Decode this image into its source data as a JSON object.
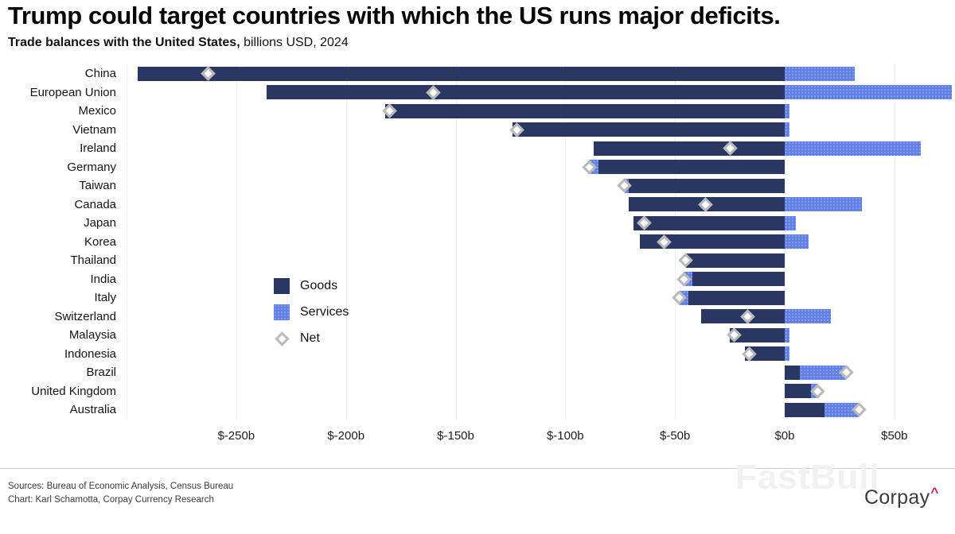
{
  "header": {
    "title": "Trump could target countries with which the US runs major deficits.",
    "subtitle_bold": "Trade balances with the United States,",
    "subtitle_rest": " billions USD, 2024"
  },
  "chart_data": {
    "type": "bar",
    "orientation": "horizontal-diverging-stacked",
    "title": "Trump could target countries with which the US runs major deficits.",
    "subtitle": "Trade balances with the United States, billions USD, 2024",
    "unit": "billions USD",
    "categories": [
      "China",
      "European Union",
      "Mexico",
      "Vietnam",
      "Ireland",
      "Germany",
      "Taiwan",
      "Canada",
      "Japan",
      "Korea",
      "Thailand",
      "India",
      "Italy",
      "Switzerland",
      "Malaysia",
      "Indonesia",
      "Brazil",
      "United Kingdom",
      "Australia"
    ],
    "series": [
      {
        "name": "Goods",
        "values": [
          -295,
          -236,
          -182,
          -124,
          -87,
          -85,
          -71,
          -71,
          -69,
          -66,
          -45,
          -42,
          -44,
          -38,
          -25,
          -18,
          7,
          12,
          18
        ]
      },
      {
        "name": "Services",
        "values": [
          32,
          76,
          2,
          2,
          62,
          -4,
          -2,
          35,
          5,
          11,
          0,
          -4,
          -4,
          21,
          2,
          2,
          21,
          3,
          16
        ]
      },
      {
        "name": "Net",
        "marker": "diamond",
        "values": [
          -263,
          -160,
          -180,
          -122,
          -25,
          -89,
          -73,
          -36,
          -64,
          -55,
          -45,
          -46,
          -48,
          -17,
          -23,
          -16,
          28,
          15,
          34
        ]
      }
    ],
    "xlim": [
      -300,
      77
    ],
    "grid_values": [
      -300,
      -250,
      -200,
      -150,
      -100,
      -50,
      0,
      50
    ],
    "xticks": [
      {
        "v": -250,
        "label": "$-250b"
      },
      {
        "v": -200,
        "label": "$-200b"
      },
      {
        "v": -150,
        "label": "$-150b"
      },
      {
        "v": -100,
        "label": "$-100b"
      },
      {
        "v": -50,
        "label": "$-50b"
      },
      {
        "v": 0,
        "label": "$0b"
      },
      {
        "v": 50,
        "label": "$50b"
      }
    ],
    "legend": [
      {
        "label": "Goods",
        "swatch": "square",
        "color": "#2b3763"
      },
      {
        "label": "Services",
        "swatch": "square-dotted",
        "color": "#6180e6"
      },
      {
        "label": "Net",
        "swatch": "diamond",
        "color": "#ffffff"
      }
    ],
    "colors": {
      "goods": "#2b3763",
      "services": "#6180e6",
      "net_stroke": "#b9b9b9",
      "grid": "#eeeeee"
    },
    "legend_position": "inside-middle-left",
    "grid": "vertical-only"
  },
  "footer": {
    "sources": "Sources: Bureau of Economic Analysis, Census Bureau",
    "credit": "Chart: Karl Schamotta, Corpay Currency Research"
  },
  "watermark": "FastBull",
  "brand": {
    "name": "Corpay",
    "caret": "^"
  }
}
